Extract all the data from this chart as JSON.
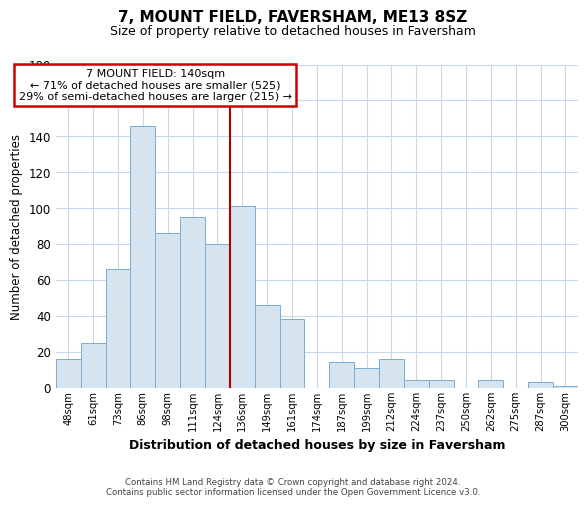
{
  "title": "7, MOUNT FIELD, FAVERSHAM, ME13 8SZ",
  "subtitle": "Size of property relative to detached houses in Faversham",
  "xlabel": "Distribution of detached houses by size in Faversham",
  "ylabel": "Number of detached properties",
  "bar_labels": [
    "48sqm",
    "61sqm",
    "73sqm",
    "86sqm",
    "98sqm",
    "111sqm",
    "124sqm",
    "136sqm",
    "149sqm",
    "161sqm",
    "174sqm",
    "187sqm",
    "199sqm",
    "212sqm",
    "224sqm",
    "237sqm",
    "250sqm",
    "262sqm",
    "275sqm",
    "287sqm",
    "300sqm"
  ],
  "bar_values": [
    16,
    25,
    66,
    146,
    86,
    95,
    80,
    101,
    46,
    38,
    0,
    14,
    11,
    16,
    4,
    4,
    0,
    4,
    0,
    3,
    1
  ],
  "bar_color": "#d6e4f0",
  "bar_edge_color": "#7aadd4",
  "vline_x_index": 7,
  "vline_color": "#aa0000",
  "annotation_title": "7 MOUNT FIELD: 140sqm",
  "annotation_line1": "← 71% of detached houses are smaller (525)",
  "annotation_line2": "29% of semi-detached houses are larger (215) →",
  "annotation_box_color": "#ffffff",
  "annotation_box_edge": "#cc0000",
  "ylim": [
    0,
    180
  ],
  "yticks": [
    0,
    20,
    40,
    60,
    80,
    100,
    120,
    140,
    160,
    180
  ],
  "footer1": "Contains HM Land Registry data © Crown copyright and database right 2024.",
  "footer2": "Contains public sector information licensed under the Open Government Licence v3.0.",
  "bg_color": "#ffffff",
  "grid_color": "#c8d8e8"
}
